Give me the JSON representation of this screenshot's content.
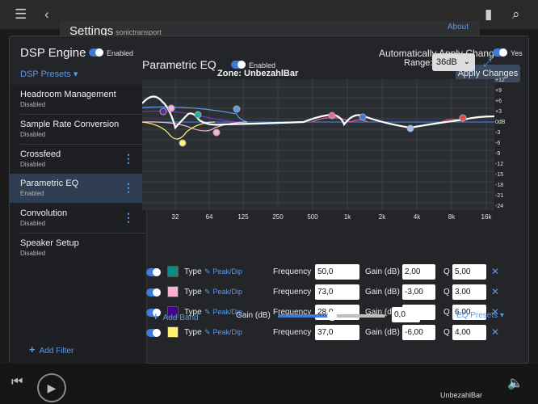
{
  "background": {
    "settings_title": "Settings",
    "settings_subtitle": "sonictransport",
    "about_link": "About",
    "bottom_zone": "UnbezahlBar"
  },
  "dialog": {
    "title": "DSP Engine",
    "enabled_label": "Enabled",
    "auto_apply_label": "Automatically Apply Changes",
    "auto_apply_value": "Yes",
    "presets_label": "DSP Presets",
    "zone_title": "Zone: UnbezahlBar",
    "apply_button": "Apply Changes"
  },
  "sidebar": {
    "items": [
      {
        "name": "Headroom Management",
        "status": "Disabled"
      },
      {
        "name": "Sample Rate Conversion",
        "status": "Disabled"
      },
      {
        "name": "Crossfeed",
        "status": "Disabled"
      },
      {
        "name": "Parametric EQ",
        "status": "Enabled"
      },
      {
        "name": "Convolution",
        "status": "Disabled"
      },
      {
        "name": "Speaker Setup",
        "status": "Disabled"
      }
    ],
    "add_filter": "Add Filter"
  },
  "peq": {
    "title": "Parametric EQ",
    "enabled_label": "Enabled",
    "range_label": "Range:",
    "range_value": "36dB",
    "y_ticks": [
      "+12",
      "+9",
      "+6",
      "+3",
      "0dB",
      "-3",
      "-6",
      "-9",
      "-12",
      "-15",
      "-18",
      "-21",
      "-24"
    ],
    "x_ticks": [
      "32",
      "64",
      "125",
      "250",
      "500",
      "1k",
      "2k",
      "4k",
      "8k",
      "16k"
    ]
  },
  "bands": [
    {
      "color": "#0e8a85",
      "type_label": "Type",
      "type_value": "Peak/Dip",
      "frequency_label": "Frequency",
      "frequency": "50,0",
      "gain_label": "Gain (dB)",
      "gain": "2,00",
      "q_label": "Q",
      "q": "5,00"
    },
    {
      "color": "#f7b2d6",
      "type_label": "Type",
      "type_value": "Peak/Dip",
      "frequency_label": "Frequency",
      "frequency": "73,0",
      "gain_label": "Gain (dB)",
      "gain": "-3,00",
      "q_label": "Q",
      "q": "3,00"
    },
    {
      "color": "#45008a",
      "type_label": "Type",
      "type_value": "Peak/Dip",
      "frequency_label": "Frequency",
      "frequency": "28,0",
      "gain_label": "Gain (dB)",
      "gain": "3,00",
      "q_label": "Q",
      "q": "6,00"
    },
    {
      "color": "#fcf469",
      "type_label": "Type",
      "type_value": "Peak/Dip",
      "frequency_label": "Frequency",
      "frequency": "37,0",
      "gain_label": "Gain (dB)",
      "gain": "-6,00",
      "q_label": "Q",
      "q": "4,00"
    }
  ],
  "footer": {
    "add_band": "Add Band",
    "gain_label": "Gain (dB)",
    "gain_value": "0,0",
    "gain_slider_fraction": 0.5,
    "eq_presets": "EQ Presets"
  }
}
